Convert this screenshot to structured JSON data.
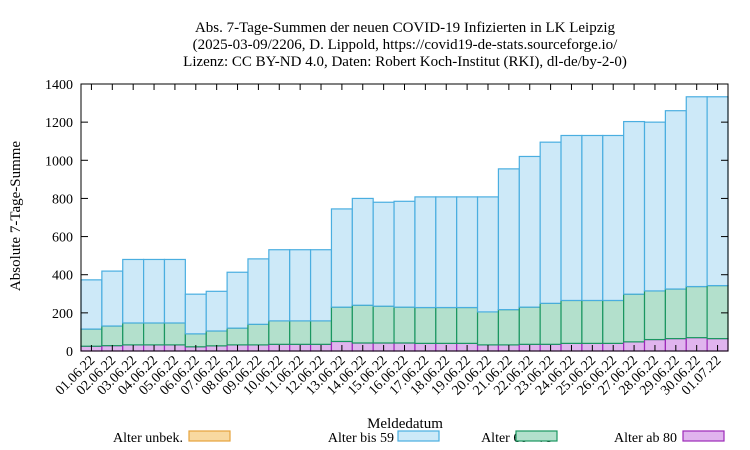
{
  "chart_data": {
    "type": "bar",
    "stacked": true,
    "title": [
      "Abs. 7-Tage-Summen der neuen COVID-19 Infizierten in LK Leipzig",
      "(2025-03-09/2206, D. Lippold, https://covid19-de-stats.sourceforge.io/",
      "Lizenz: CC BY-ND 4.0, Daten: Robert Koch-Institut (RKI), dl-de/by-2-0)"
    ],
    "xlabel": "Meldedatum",
    "ylabel": "Absolute 7-Tage-Summe",
    "ylim": [
      0,
      1400
    ],
    "yticks": [
      0,
      200,
      400,
      600,
      800,
      1000,
      1200,
      1400
    ],
    "categories": [
      "01.06.22",
      "02.06.22",
      "03.06.22",
      "04.06.22",
      "05.06.22",
      "06.06.22",
      "07.06.22",
      "08.06.22",
      "09.06.22",
      "10.06.22",
      "11.06.22",
      "12.06.22",
      "13.06.22",
      "14.06.22",
      "15.06.22",
      "16.06.22",
      "17.06.22",
      "18.06.22",
      "19.06.22",
      "20.06.22",
      "21.06.22",
      "22.06.22",
      "23.06.22",
      "24.06.22",
      "25.06.22",
      "26.06.22",
      "27.06.22",
      "28.06.22",
      "29.06.22",
      "30.06.22",
      "01.07.22"
    ],
    "series": [
      {
        "name": "Alter unbek.",
        "color": "#f8d9a0",
        "stroke": "#e6a33c",
        "values": [
          0,
          0,
          0,
          0,
          0,
          0,
          0,
          0,
          0,
          0,
          0,
          0,
          0,
          0,
          0,
          0,
          0,
          0,
          0,
          0,
          0,
          0,
          0,
          0,
          0,
          0,
          0,
          0,
          0,
          0,
          0
        ]
      },
      {
        "name": "Alter ab 80",
        "color": "#e0b4ee",
        "stroke": "#9c2ab8",
        "values": [
          25,
          28,
          32,
          32,
          32,
          22,
          27,
          32,
          32,
          35,
          35,
          35,
          50,
          42,
          42,
          42,
          40,
          40,
          40,
          32,
          32,
          35,
          35,
          40,
          40,
          40,
          48,
          60,
          65,
          70,
          65
        ]
      },
      {
        "name": "Alter 60 - 79",
        "color": "#b3e0cc",
        "stroke": "#1a9660",
        "values": [
          90,
          103,
          115,
          115,
          115,
          68,
          78,
          88,
          108,
          123,
          123,
          123,
          180,
          198,
          193,
          188,
          188,
          188,
          188,
          173,
          185,
          195,
          215,
          225,
          225,
          225,
          250,
          255,
          260,
          268,
          278
        ]
      },
      {
        "name": "Alter bis 59",
        "color": "#cde9f8",
        "stroke": "#4aaee0",
        "values": [
          258,
          288,
          333,
          333,
          333,
          208,
          208,
          293,
          343,
          373,
          373,
          373,
          515,
          560,
          545,
          555,
          580,
          580,
          580,
          603,
          738,
          790,
          845,
          865,
          865,
          865,
          905,
          885,
          935,
          995,
          990
        ]
      }
    ],
    "legend_order": [
      "Alter unbek.",
      "Alter bis 59",
      "Alter 60 - 79",
      "Alter ab 80"
    ],
    "legend_position": "bottom",
    "grid": false
  }
}
